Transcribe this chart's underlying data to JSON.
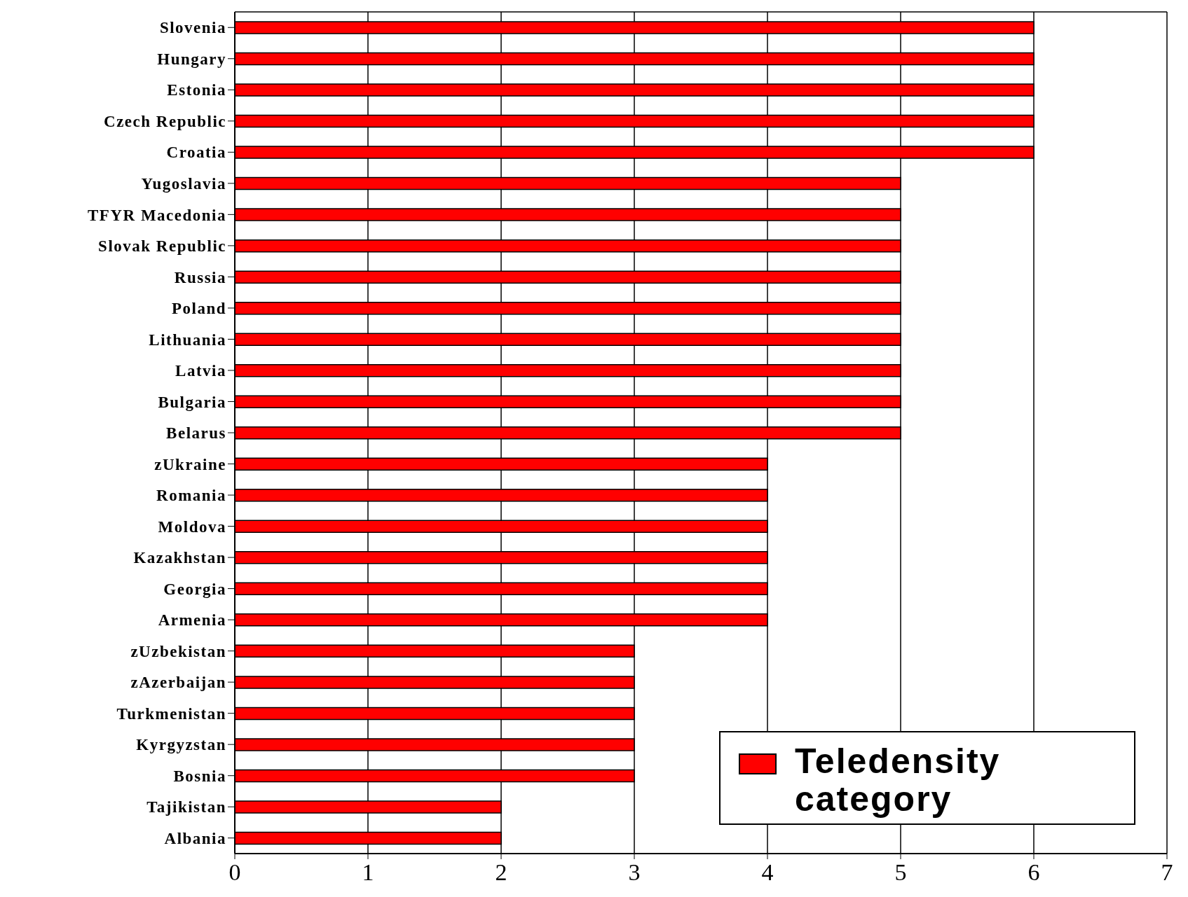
{
  "chart_data": {
    "type": "bar",
    "orientation": "horizontal",
    "categories": [
      "Slovenia",
      "Hungary",
      "Estonia",
      "Czech Republic",
      "Croatia",
      "Yugoslavia",
      "TFYR Macedonia",
      "Slovak Republic",
      "Russia",
      "Poland",
      "Lithuania",
      "Latvia",
      "Bulgaria",
      "Belarus",
      "zUkraine",
      "Romania",
      "Moldova",
      "Kazakhstan",
      "Georgia",
      "Armenia",
      "zUzbekistan",
      "zAzerbaijan",
      "Turkmenistan",
      "Kyrgyzstan",
      "Bosnia",
      "Tajikistan",
      "Albania"
    ],
    "series": [
      {
        "name": "Teledensity category",
        "color": "#ff0000",
        "values": [
          6,
          6,
          6,
          6,
          6,
          5,
          5,
          5,
          5,
          5,
          5,
          5,
          5,
          5,
          4,
          4,
          4,
          4,
          4,
          4,
          3,
          3,
          3,
          3,
          3,
          2,
          2
        ]
      }
    ],
    "xlim": [
      0,
      7
    ],
    "xticks": [
      0,
      1,
      2,
      3,
      4,
      5,
      6,
      7
    ],
    "grid": "x",
    "legend": "bottom right"
  }
}
